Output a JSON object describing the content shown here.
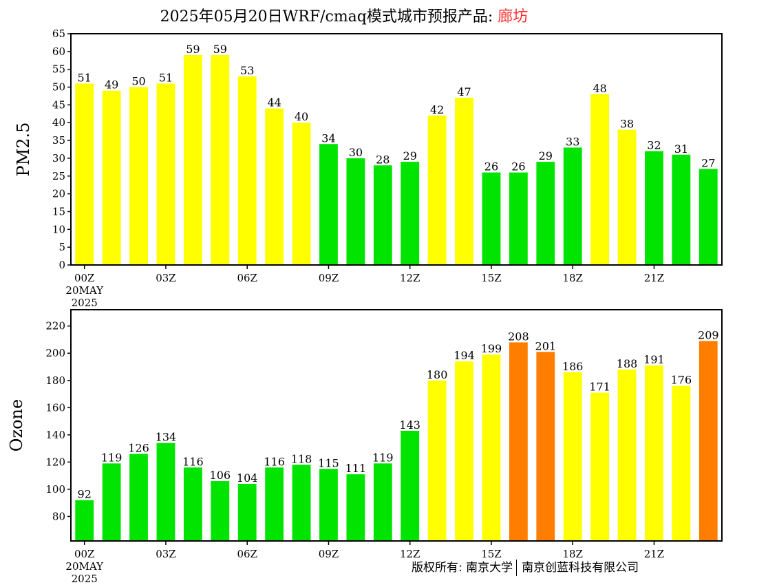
{
  "title": {
    "main": "2025年05月20日WRF/cmaq模式城市预报产品: ",
    "city": "廊坊"
  },
  "footer": {
    "left": "版权所有: 南京大学",
    "right": "南京创蓝科技有限公司"
  },
  "colors": {
    "green": "#00e400",
    "yellow": "#ffff00",
    "orange": "#ff7e00"
  },
  "chart_data": [
    {
      "type": "bar",
      "ylabel": "PM2.5",
      "ylim": [
        0,
        65
      ],
      "yticks": [
        0,
        5,
        10,
        15,
        20,
        25,
        30,
        35,
        40,
        45,
        50,
        55,
        60,
        65
      ],
      "x_tick_labels": [
        {
          "hour": 0,
          "label": "00Z"
        },
        {
          "hour": 3,
          "label": "03Z"
        },
        {
          "hour": 6,
          "label": "06Z"
        },
        {
          "hour": 9,
          "label": "09Z"
        },
        {
          "hour": 12,
          "label": "12Z"
        },
        {
          "hour": 15,
          "label": "15Z"
        },
        {
          "hour": 18,
          "label": "18Z"
        },
        {
          "hour": 21,
          "label": "21Z"
        }
      ],
      "date_label": [
        "20MAY",
        "2025"
      ],
      "values": [
        51,
        49,
        50,
        51,
        59,
        59,
        53,
        44,
        40,
        34,
        30,
        28,
        29,
        42,
        47,
        26,
        26,
        29,
        33,
        48,
        38,
        32,
        31,
        27
      ],
      "bar_colors": [
        "yellow",
        "yellow",
        "yellow",
        "yellow",
        "yellow",
        "yellow",
        "yellow",
        "yellow",
        "yellow",
        "green",
        "green",
        "green",
        "green",
        "yellow",
        "yellow",
        "green",
        "green",
        "green",
        "green",
        "yellow",
        "yellow",
        "green",
        "green",
        "green"
      ]
    },
    {
      "type": "bar",
      "ylabel": "Ozone",
      "ylim": [
        62,
        232
      ],
      "yticks": [
        80,
        100,
        120,
        140,
        160,
        180,
        200,
        220
      ],
      "x_tick_labels": [
        {
          "hour": 0,
          "label": "00Z"
        },
        {
          "hour": 3,
          "label": "03Z"
        },
        {
          "hour": 6,
          "label": "06Z"
        },
        {
          "hour": 9,
          "label": "09Z"
        },
        {
          "hour": 12,
          "label": "12Z"
        },
        {
          "hour": 15,
          "label": "15Z"
        },
        {
          "hour": 18,
          "label": "18Z"
        },
        {
          "hour": 21,
          "label": "21Z"
        }
      ],
      "date_label": [
        "20MAY",
        "2025"
      ],
      "values": [
        92,
        119,
        126,
        134,
        116,
        106,
        104,
        116,
        118,
        115,
        111,
        119,
        143,
        180,
        194,
        199,
        208,
        201,
        186,
        171,
        188,
        191,
        176,
        209
      ],
      "bar_colors": [
        "green",
        "green",
        "green",
        "green",
        "green",
        "green",
        "green",
        "green",
        "green",
        "green",
        "green",
        "green",
        "green",
        "yellow",
        "yellow",
        "yellow",
        "orange",
        "orange",
        "yellow",
        "yellow",
        "yellow",
        "yellow",
        "yellow",
        "orange"
      ]
    }
  ]
}
